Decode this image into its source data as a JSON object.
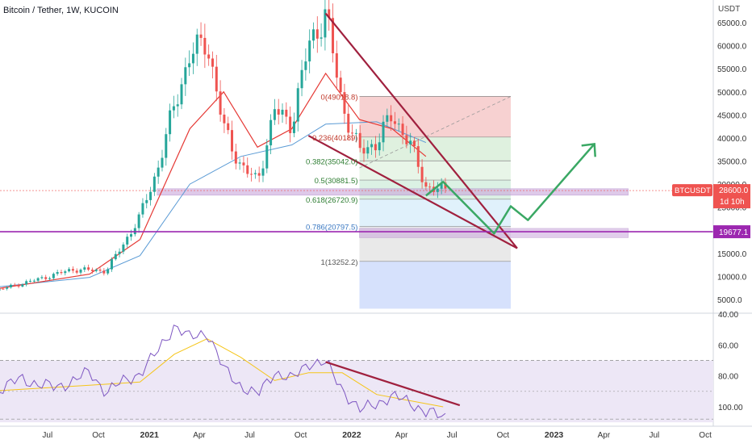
{
  "symbol_title": "Bitcoin / Tether, 1W, KUCOIN",
  "currency_label": "USDT",
  "colors": {
    "up": "#26a69a",
    "down": "#ef5350",
    "ema_fast": "#e53935",
    "ema_slow": "#5b9bd5",
    "trendline": "#a0203e",
    "projection": "#3aa864",
    "support_line": "#9c27b0",
    "support_zone": "#c9a6db",
    "price_label": "#ef5350",
    "rsi_line": "#7e57c2",
    "rsi_ma": "#f5c518",
    "rsi_band": "#ede7f6"
  },
  "price_axis": {
    "ticks": [
      "65000.0",
      "60000.0",
      "55000.0",
      "50000.0",
      "45000.0",
      "40000.0",
      "35000.0",
      "30000.0",
      "25000.0",
      "20000.0",
      "15000.0",
      "10000.0",
      "5000.0"
    ]
  },
  "rsi_axis": {
    "ticks": [
      "100.00",
      "80.00",
      "60.00",
      "40.00"
    ]
  },
  "time_axis": {
    "labels": [
      "Apr",
      "Jul",
      "Oct",
      "2021",
      "Apr",
      "Jul",
      "Oct",
      "2022",
      "Apr",
      "Jul",
      "Oct",
      "2023",
      "Apr",
      "Jul",
      "Oct"
    ]
  },
  "price_tags": {
    "symbol": "BTCUSDT",
    "last_price": "28600.0",
    "countdown": "1d 10h",
    "support_price": "19677.1"
  },
  "chart_data": [
    {
      "type": "candlestick",
      "title": "Bitcoin / Tether, 1W, KUCOIN",
      "ylabel": "USDT",
      "ylim": [
        3000,
        68000
      ],
      "x_range": [
        "2020-03",
        "2023-10"
      ],
      "y_ticks": [
        5000,
        10000,
        15000,
        20000,
        25000,
        30000,
        35000,
        40000,
        45000,
        50000,
        55000,
        60000,
        65000
      ],
      "x_ticks": [
        "Apr",
        "Jul",
        "Oct",
        "2021",
        "Apr",
        "Jul",
        "Oct",
        "2022",
        "Apr",
        "Jul",
        "Oct",
        "2023",
        "Apr",
        "Jul",
        "Oct"
      ],
      "price_path_keypoints": [
        {
          "date": "2020-03",
          "close": 6500
        },
        {
          "date": "2020-06",
          "close": 9400
        },
        {
          "date": "2020-08",
          "close": 11500
        },
        {
          "date": "2020-10",
          "close": 11200
        },
        {
          "date": "2020-11",
          "close": 17000
        },
        {
          "date": "2020-12",
          "close": 23000
        },
        {
          "date": "2021-01",
          "close": 33000
        },
        {
          "date": "2021-02",
          "close": 47000
        },
        {
          "date": "2021-03",
          "close": 58000
        },
        {
          "date": "2021-04",
          "close": 61000
        },
        {
          "date": "2021-05",
          "close": 42000
        },
        {
          "date": "2021-06",
          "close": 34000
        },
        {
          "date": "2021-07",
          "close": 30500
        },
        {
          "date": "2021-08",
          "close": 46000
        },
        {
          "date": "2021-09",
          "close": 43000
        },
        {
          "date": "2021-10",
          "close": 60000
        },
        {
          "date": "2021-11",
          "close": 67000
        },
        {
          "date": "2021-12",
          "close": 47000
        },
        {
          "date": "2022-01",
          "close": 37000
        },
        {
          "date": "2022-02",
          "close": 39000
        },
        {
          "date": "2022-03",
          "close": 45000
        },
        {
          "date": "2022-04",
          "close": 39000
        },
        {
          "date": "2022-05",
          "close": 29500
        },
        {
          "date": "2022-06",
          "close": 28600
        }
      ],
      "ema_fast_keypoints": [
        {
          "date": "2020-03",
          "value": 7000
        },
        {
          "date": "2020-09",
          "value": 10500
        },
        {
          "date": "2020-12",
          "value": 18000
        },
        {
          "date": "2021-03",
          "value": 42000
        },
        {
          "date": "2021-05",
          "value": 50000
        },
        {
          "date": "2021-07",
          "value": 38000
        },
        {
          "date": "2021-09",
          "value": 42000
        },
        {
          "date": "2021-11",
          "value": 54000
        },
        {
          "date": "2022-01",
          "value": 44000
        },
        {
          "date": "2022-03",
          "value": 42000
        },
        {
          "date": "2022-05",
          "value": 36000
        }
      ],
      "ema_slow_keypoints": [
        {
          "date": "2020-03",
          "value": 7500
        },
        {
          "date": "2020-09",
          "value": 9800
        },
        {
          "date": "2020-12",
          "value": 14500
        },
        {
          "date": "2021-03",
          "value": 30000
        },
        {
          "date": "2021-06",
          "value": 36000
        },
        {
          "date": "2021-09",
          "value": 38500
        },
        {
          "date": "2021-11",
          "value": 43000
        },
        {
          "date": "2022-02",
          "value": 43500
        },
        {
          "date": "2022-05",
          "value": 39000
        }
      ],
      "fibonacci": [
        {
          "ratio": 0,
          "label": "0(49018.8)",
          "price": 49018.8,
          "zone": "#f6c9c9"
        },
        {
          "ratio": 0.236,
          "label": "0.236(40189)",
          "price": 40189,
          "zone": "#d9efd9"
        },
        {
          "ratio": 0.382,
          "label": "0.382(35042.0)",
          "price": 35042.0,
          "zone": "#e4f3e4"
        },
        {
          "ratio": 0.5,
          "label": "0.5(30881.5)",
          "price": 30881.5,
          "zone": "#d5eedf"
        },
        {
          "ratio": 0.618,
          "label": "0.618(26720.9)",
          "price": 26720.9,
          "zone": "#dbeefa"
        },
        {
          "ratio": 0.786,
          "label": "0.786(20797.5)",
          "price": 20797.5,
          "zone": "#e5e5e5"
        },
        {
          "ratio": 1,
          "label": "1(13252.2)",
          "price": 13252.2,
          "zone": "#cfdcfc"
        }
      ],
      "fib_range": {
        "from": "2022-01",
        "to": "2022-10",
        "bottom": 3000
      },
      "support_zone": {
        "price_low": 27600,
        "price_high": 29000,
        "from": "2021-01",
        "to": "2023-05"
      },
      "support_zone_2": {
        "price_low": 18400,
        "price_high": 20400,
        "from": "2022-01",
        "to": "2023-05"
      },
      "support_line": {
        "price": 19677.1
      },
      "last_price_line": {
        "price": 28600.0
      },
      "wedge_upper": [
        {
          "date": "2021-11",
          "price": 67000
        },
        {
          "date": "2022-10",
          "price": 17500
        }
      ],
      "wedge_lower": [
        {
          "date": "2021-10",
          "price": 40500
        },
        {
          "date": "2022-10",
          "price": 17500
        }
      ],
      "dashed_projection": [
        {
          "date": "2022-01",
          "price": 33500
        },
        {
          "date": "2022-10",
          "price": 49000
        }
      ],
      "projection_arrow": [
        {
          "date": "2022-05",
          "price": 27500
        },
        {
          "date": "2022-06",
          "price": 30500
        },
        {
          "date": "2022-09",
          "price": 19300
        },
        {
          "date": "2022-10",
          "price": 25200
        },
        {
          "date": "2022-11",
          "price": 22200
        },
        {
          "date": "2023-03",
          "price": 38700
        }
      ]
    },
    {
      "type": "line",
      "title": "RSI",
      "ylim": [
        30,
        100
      ],
      "y_ticks": [
        40,
        60,
        80,
        100
      ],
      "band": [
        30,
        70
      ],
      "mid_line": 50,
      "rsi_keypoints": [
        {
          "date": "2020-03",
          "value": 48
        },
        {
          "date": "2020-05",
          "value": 58
        },
        {
          "date": "2020-07",
          "value": 52
        },
        {
          "date": "2020-09",
          "value": 62
        },
        {
          "date": "2020-10",
          "value": 50
        },
        {
          "date": "2020-12",
          "value": 62
        },
        {
          "date": "2021-01",
          "value": 75
        },
        {
          "date": "2021-02",
          "value": 93
        },
        {
          "date": "2021-03",
          "value": 84
        },
        {
          "date": "2021-04",
          "value": 89
        },
        {
          "date": "2021-05",
          "value": 64
        },
        {
          "date": "2021-06",
          "value": 54
        },
        {
          "date": "2021-07",
          "value": 47
        },
        {
          "date": "2021-08",
          "value": 63
        },
        {
          "date": "2021-09",
          "value": 57
        },
        {
          "date": "2021-10",
          "value": 69
        },
        {
          "date": "2021-11",
          "value": 68
        },
        {
          "date": "2021-12",
          "value": 52
        },
        {
          "date": "2022-01",
          "value": 37
        },
        {
          "date": "2022-02",
          "value": 43
        },
        {
          "date": "2022-03",
          "value": 46
        },
        {
          "date": "2022-04",
          "value": 44
        },
        {
          "date": "2022-05",
          "value": 36
        },
        {
          "date": "2022-06",
          "value": 34
        }
      ],
      "rsi_ma_keypoints": [
        {
          "date": "2020-03",
          "value": 50
        },
        {
          "date": "2020-09",
          "value": 54
        },
        {
          "date": "2020-12",
          "value": 56
        },
        {
          "date": "2021-02",
          "value": 74
        },
        {
          "date": "2021-04",
          "value": 84
        },
        {
          "date": "2021-06",
          "value": 72
        },
        {
          "date": "2021-08",
          "value": 57
        },
        {
          "date": "2021-10",
          "value": 62
        },
        {
          "date": "2021-12",
          "value": 62
        },
        {
          "date": "2022-02",
          "value": 48
        },
        {
          "date": "2022-04",
          "value": 44
        },
        {
          "date": "2022-06",
          "value": 40
        }
      ],
      "divergence_line": [
        {
          "date": "2021-11",
          "value": 69
        },
        {
          "date": "2022-07",
          "value": 41
        }
      ]
    }
  ]
}
